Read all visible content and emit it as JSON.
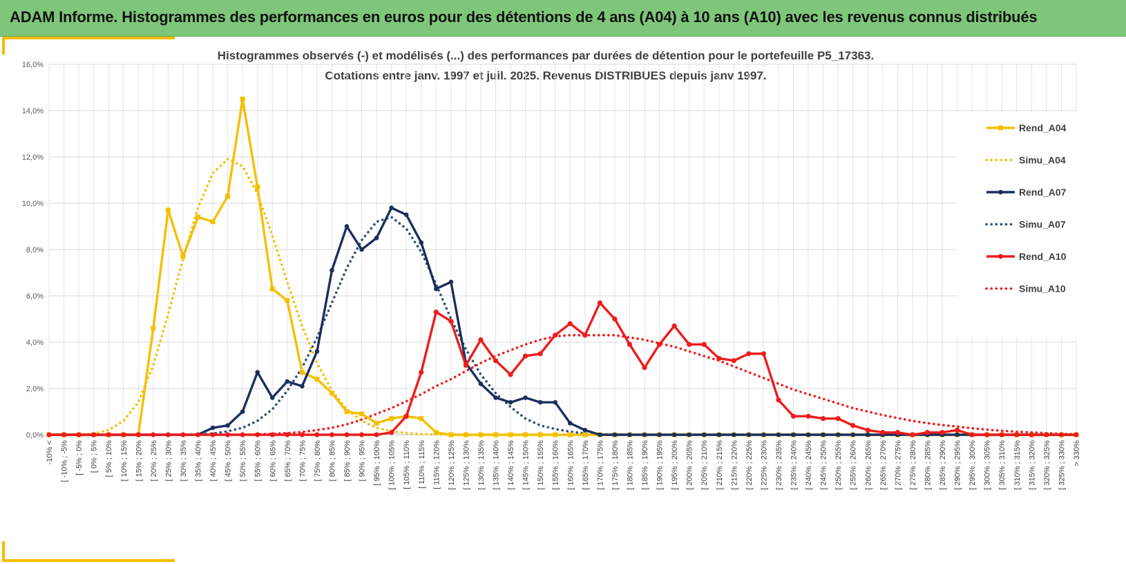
{
  "header": {
    "title": "ADAM Informe. Histogrammes des performances en euros pour des détentions de 4 ans (A04) à 10 ans (A10) avec les revenus connus distribués"
  },
  "colors": {
    "banner": "#7ec77a",
    "accent": "#f2bd00"
  },
  "chart_data": {
    "type": "line",
    "title": "Histogrammes observés (-) et modélisés (...) des performances par durées de détention pour le portefeuille P5_17363.",
    "subtitle": "Cotations entre janv. 1997 et juil. 2025. Revenus DISTRIBUES depuis janv 1997.",
    "xlabel": "",
    "ylabel": "",
    "ylim": [
      0,
      16
    ],
    "yticks": [
      "0,0%",
      "2,0%",
      "4,0%",
      "6,0%",
      "8,0%",
      "10,0%",
      "12,0%",
      "14,0%",
      "16,0%"
    ],
    "grid": true,
    "legend_position": "right",
    "categories": [
      "-10% <",
      "[ -10% ; -5%",
      "[ -5% ; 0%",
      "[ 0% ; 5%",
      "[ 5% ; 10%",
      "[ 10% ; 15%",
      "[ 15% ; 20%",
      "[ 20% ; 25%",
      "[ 25% ; 30%",
      "[ 30% ; 35%",
      "[ 35% ; 40%",
      "[ 40% ; 45%",
      "[ 45% ; 50%",
      "[ 50% ; 55%",
      "[ 55% ; 60%",
      "[ 60% ; 65%",
      "[ 65% ; 70%",
      "[ 70% ; 75%",
      "[ 75% ; 80%",
      "[ 80% ; 85%",
      "[ 85% ; 90%",
      "[ 90% ; 95%",
      "[ 95% ; 100%",
      "[ 100% ; 105%",
      "[ 105% ; 110%",
      "[ 110% ; 115%",
      "[ 115% ; 120%",
      "[ 120% ; 125%",
      "[ 125% ; 130%",
      "[ 130% ; 135%",
      "[ 135% ; 140%",
      "[ 140% ; 145%",
      "[ 145% ; 150%",
      "[ 150% ; 155%",
      "[ 155% ; 160%",
      "[ 160% ; 165%",
      "[ 165% ; 170%",
      "[ 170% ; 175%",
      "[ 175% ; 180%",
      "[ 180% ; 185%",
      "[ 185% ; 190%",
      "[ 190% ; 195%",
      "[ 195% ; 200%",
      "[ 200% ; 205%",
      "[ 205% ; 210%",
      "[ 210% ; 215%",
      "[ 215% ; 220%",
      "[ 220% ; 225%",
      "[ 225% ; 230%",
      "[ 230% ; 235%",
      "[ 235% ; 240%",
      "[ 240% ; 245%",
      "[ 245% ; 250%",
      "[ 250% ; 255%",
      "[ 255% ; 260%",
      "[ 260% ; 265%",
      "[ 265% ; 270%",
      "[ 270% ; 275%",
      "[ 275% ; 280%",
      "[ 280% ; 285%",
      "[ 285% ; 290%",
      "[ 290% ; 295%",
      "[ 295% ; 300%",
      "[ 300% ; 305%",
      "[ 305% ; 310%",
      "[ 310% ; 315%",
      "[ 315% ; 320%",
      "[ 320% ; 325%",
      "[ 325% ; 330%",
      "> 330%"
    ],
    "series": [
      {
        "name": "Rend_A04",
        "color": "#f5bf00",
        "style": "solid",
        "marker": "square",
        "values": [
          0,
          0,
          0,
          0,
          0,
          0,
          0,
          4.6,
          9.7,
          7.7,
          9.4,
          9.2,
          10.3,
          14.5,
          10.7,
          6.3,
          5.8,
          2.7,
          2.4,
          1.8,
          1.0,
          0.9,
          0.5,
          0.7,
          0.8,
          0.7,
          0.1,
          0,
          0,
          0,
          0,
          0,
          0,
          0,
          0,
          0,
          0,
          0,
          0,
          0,
          0,
          0,
          0,
          0,
          0,
          0,
          0,
          0,
          0,
          0,
          0,
          0,
          0,
          0,
          0,
          0,
          0,
          0,
          0,
          0,
          0,
          0,
          0,
          0,
          0,
          0,
          0,
          0,
          0,
          0
        ]
      },
      {
        "name": "Simu_A04",
        "color": "#f5bf00",
        "style": "dotted",
        "values": [
          0,
          0,
          0,
          0.05,
          0.2,
          0.6,
          1.4,
          3.0,
          5.2,
          7.6,
          9.8,
          11.3,
          11.9,
          11.6,
          10.4,
          8.6,
          6.6,
          4.7,
          3.1,
          1.9,
          1.1,
          0.6,
          0.3,
          0.15,
          0.07,
          0.03,
          0.01,
          0,
          0,
          0,
          0,
          0,
          0,
          0,
          0,
          0,
          0,
          0,
          0,
          0,
          0,
          0,
          0,
          0,
          0,
          0,
          0,
          0,
          0,
          0,
          0,
          0,
          0,
          0,
          0,
          0,
          0,
          0,
          0,
          0,
          0,
          0,
          0,
          0,
          0,
          0,
          0,
          0,
          0,
          0
        ]
      },
      {
        "name": "Rend_A07",
        "color": "#1b2f5e",
        "style": "solid",
        "marker": "circle",
        "values": [
          0,
          0,
          0,
          0,
          0,
          0,
          0,
          0,
          0,
          0,
          0,
          0.3,
          0.4,
          1.0,
          2.7,
          1.6,
          2.3,
          2.1,
          3.6,
          7.1,
          9.0,
          8.0,
          8.5,
          9.8,
          9.5,
          8.3,
          6.3,
          6.6,
          3.1,
          2.2,
          1.6,
          1.4,
          1.6,
          1.4,
          1.4,
          0.5,
          0.2,
          0,
          0,
          0,
          0,
          0,
          0,
          0,
          0,
          0,
          0,
          0,
          0,
          0,
          0,
          0,
          0,
          0,
          0,
          0,
          0,
          0,
          0,
          0,
          0,
          0,
          0,
          0,
          0,
          0,
          0,
          0,
          0,
          0
        ]
      },
      {
        "name": "Simu_A07",
        "color": "#2d4f75",
        "style": "dotted",
        "values": [
          0,
          0,
          0,
          0,
          0,
          0,
          0,
          0,
          0,
          0,
          0.02,
          0.05,
          0.15,
          0.3,
          0.6,
          1.1,
          1.9,
          2.9,
          4.2,
          5.7,
          7.2,
          8.4,
          9.2,
          9.4,
          8.9,
          7.9,
          6.5,
          5.0,
          3.7,
          2.6,
          1.8,
          1.2,
          0.7,
          0.4,
          0.25,
          0.13,
          0.06,
          0.03,
          0.01,
          0,
          0,
          0,
          0,
          0,
          0,
          0,
          0,
          0,
          0,
          0,
          0,
          0,
          0,
          0,
          0,
          0,
          0,
          0,
          0,
          0,
          0,
          0,
          0,
          0,
          0,
          0,
          0,
          0,
          0,
          0
        ]
      },
      {
        "name": "Rend_A10",
        "color": "#ee1c1c",
        "style": "solid",
        "marker": "diamond",
        "values": [
          0,
          0,
          0,
          0,
          0,
          0,
          0,
          0,
          0,
          0,
          0,
          0,
          0,
          0,
          0,
          0,
          0,
          0,
          0,
          0,
          0,
          0,
          0,
          0.1,
          0.8,
          2.7,
          5.3,
          4.9,
          3.0,
          4.1,
          3.2,
          2.6,
          3.4,
          3.5,
          4.3,
          4.8,
          4.3,
          5.7,
          5.0,
          3.9,
          2.9,
          3.9,
          4.7,
          3.9,
          3.9,
          3.3,
          3.2,
          3.5,
          3.5,
          1.5,
          0.8,
          0.8,
          0.7,
          0.7,
          0.4,
          0.2,
          0.1,
          0.1,
          0,
          0.1,
          0.1,
          0.2,
          0,
          0,
          0,
          0,
          0,
          0,
          0,
          0
        ]
      },
      {
        "name": "Simu_A10",
        "color": "#ee1c1c",
        "style": "dotted",
        "values": [
          0,
          0,
          0,
          0,
          0,
          0,
          0,
          0,
          0,
          0,
          0,
          0,
          0,
          0,
          0.02,
          0.04,
          0.07,
          0.12,
          0.2,
          0.3,
          0.45,
          0.65,
          0.9,
          1.15,
          1.45,
          1.75,
          2.1,
          2.4,
          2.75,
          3.1,
          3.4,
          3.65,
          3.9,
          4.1,
          4.25,
          4.3,
          4.3,
          4.3,
          4.3,
          4.2,
          4.1,
          3.95,
          3.8,
          3.6,
          3.4,
          3.2,
          2.95,
          2.7,
          2.45,
          2.2,
          1.95,
          1.75,
          1.55,
          1.35,
          1.15,
          1.0,
          0.85,
          0.72,
          0.6,
          0.5,
          0.42,
          0.35,
          0.28,
          0.22,
          0.17,
          0.13,
          0.1,
          0.07,
          0.04,
          0.02
        ]
      }
    ]
  }
}
